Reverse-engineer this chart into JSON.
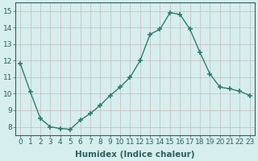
{
  "x": [
    0,
    1,
    2,
    3,
    4,
    5,
    6,
    7,
    8,
    9,
    10,
    11,
    12,
    13,
    14,
    15,
    16,
    17,
    18,
    19,
    20,
    21,
    22,
    23
  ],
  "y": [
    11.8,
    10.1,
    8.5,
    8.0,
    7.9,
    7.85,
    8.4,
    8.8,
    9.3,
    9.9,
    10.4,
    11.0,
    12.0,
    13.6,
    13.9,
    14.9,
    14.8,
    13.9,
    12.5,
    11.2,
    10.4,
    10.3,
    10.15,
    9.9
  ],
  "line_color": "#2e7d6e",
  "marker": "+",
  "marker_size": 4,
  "marker_lw": 1.2,
  "bg_color": "#d6eeee",
  "grid_color": "#c8b8b8",
  "xlabel": "Humidex (Indice chaleur)",
  "ylabel": "",
  "xlim": [
    -0.5,
    23.5
  ],
  "ylim": [
    7.5,
    15.5
  ],
  "yticks": [
    8,
    9,
    10,
    11,
    12,
    13,
    14,
    15
  ],
  "xticks": [
    0,
    1,
    2,
    3,
    4,
    5,
    6,
    7,
    8,
    9,
    10,
    11,
    12,
    13,
    14,
    15,
    16,
    17,
    18,
    19,
    20,
    21,
    22,
    23
  ],
  "tick_fontsize": 6.5,
  "xlabel_fontsize": 7.5
}
